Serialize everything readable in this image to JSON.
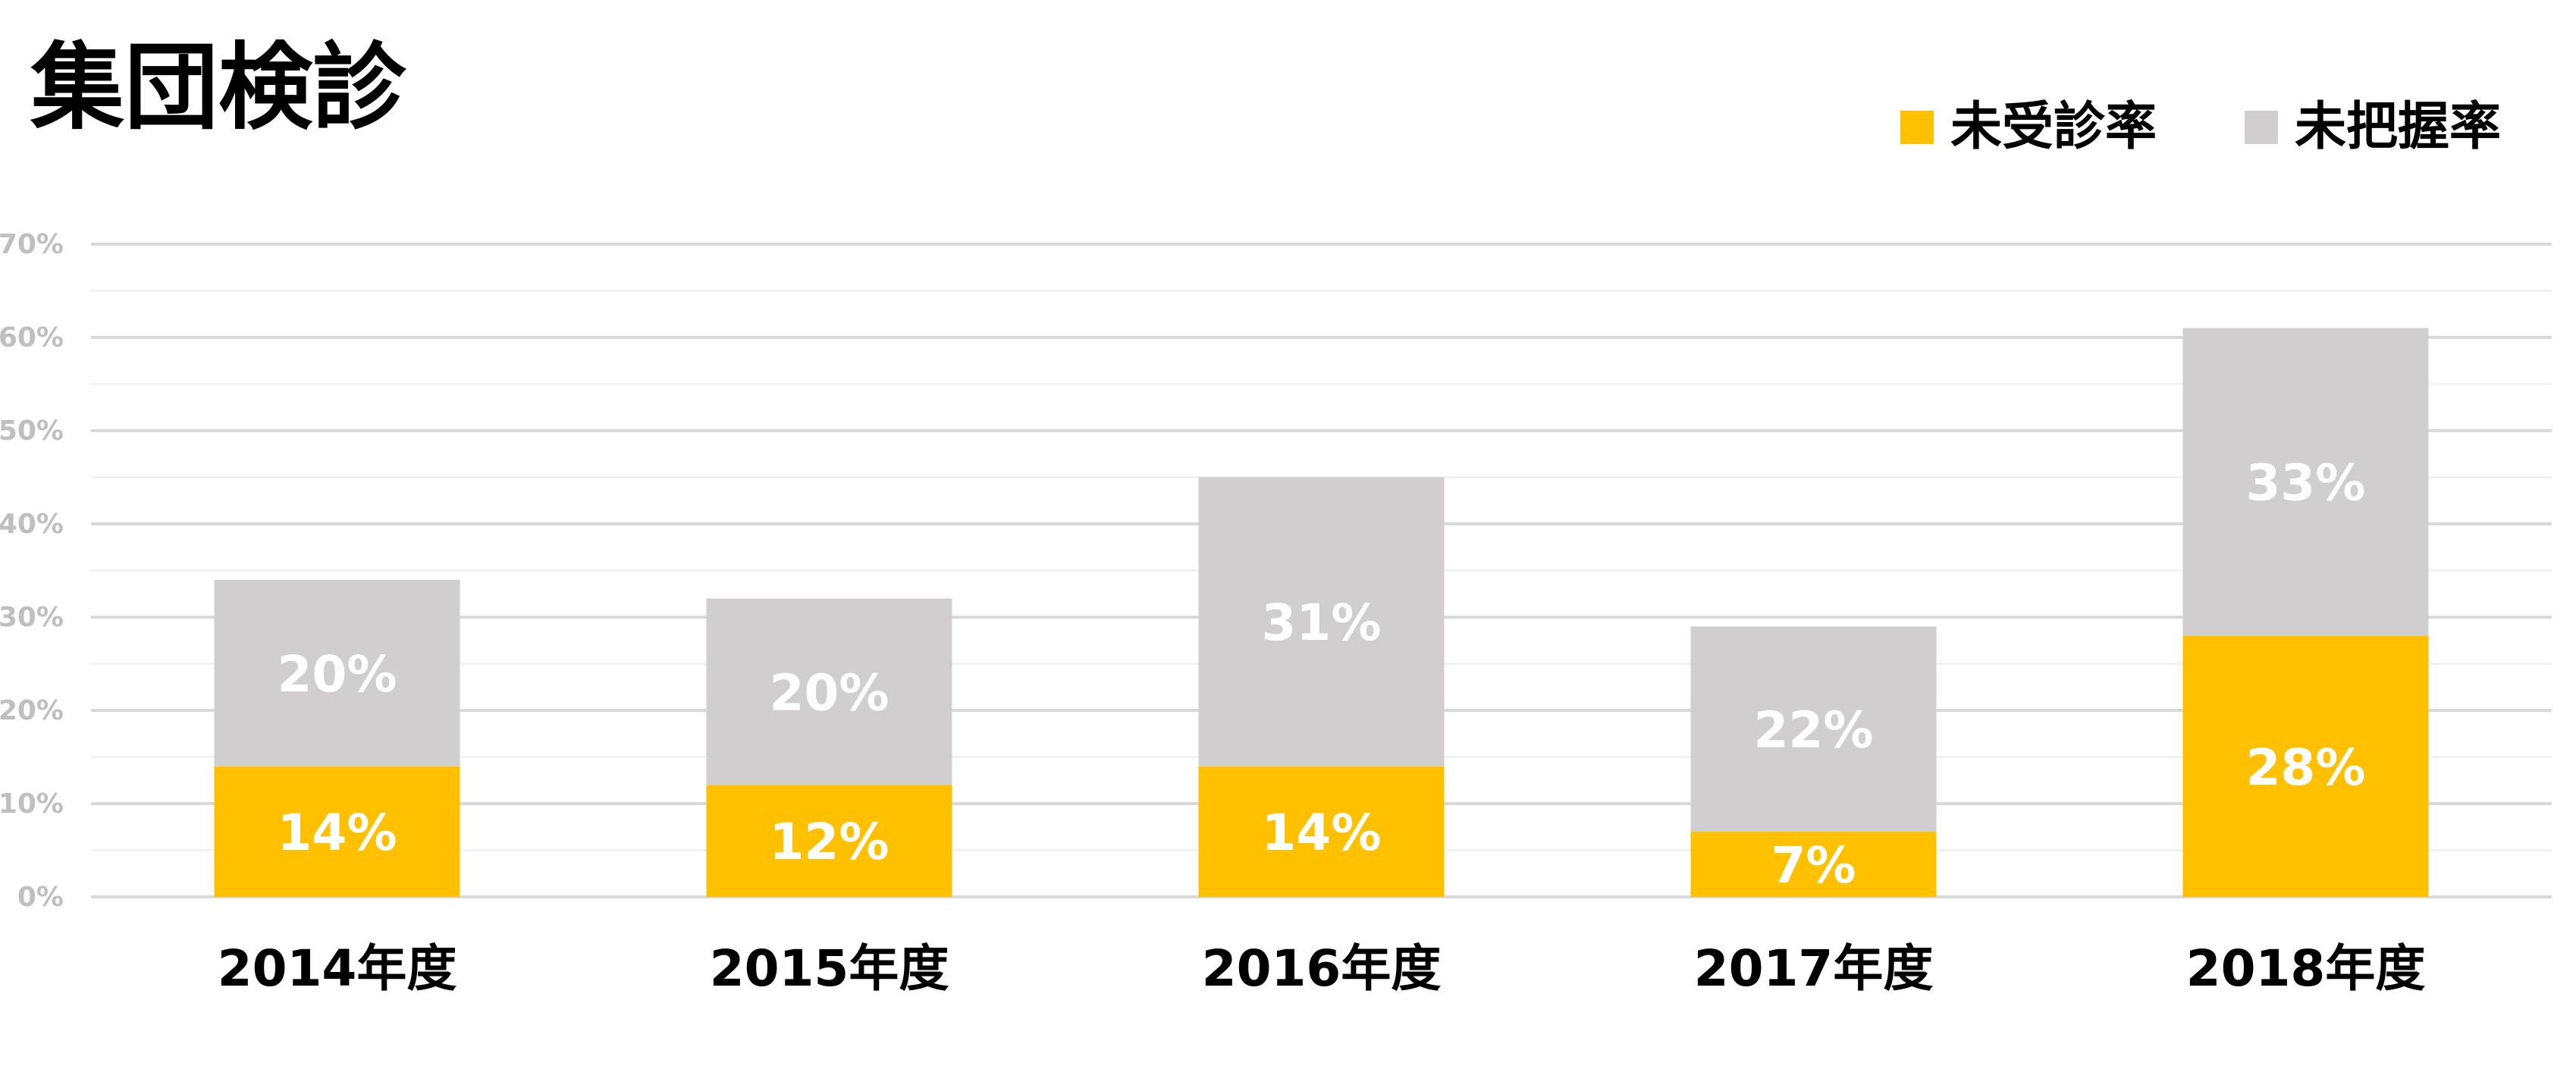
{
  "chart_data": {
    "type": "bar",
    "stacked": true,
    "title": "集団検診",
    "categories": [
      "2014年度",
      "2015年度",
      "2016年度",
      "2017年度",
      "2018年度"
    ],
    "series": [
      {
        "name": "未受診率",
        "color": "#FFC000",
        "values": [
          14,
          12,
          14,
          7,
          28
        ],
        "labels": [
          "14%",
          "12%",
          "14%",
          "7%",
          "28%"
        ]
      },
      {
        "name": "未把握率",
        "color": "#D0CECE",
        "values": [
          20,
          20,
          31,
          22,
          33
        ],
        "labels": [
          "20%",
          "20%",
          "31%",
          "22%",
          "33%"
        ]
      }
    ],
    "ylim": [
      0,
      70
    ],
    "yticks": [
      0,
      10,
      20,
      30,
      40,
      50,
      60,
      70
    ],
    "ytick_labels": [
      "0%",
      "10%",
      "20%",
      "30%",
      "40%",
      "50%",
      "60%",
      "70%"
    ],
    "xlabel": "",
    "ylabel": "",
    "grid": true,
    "minor_grid": true,
    "legend_position": "top-right"
  }
}
